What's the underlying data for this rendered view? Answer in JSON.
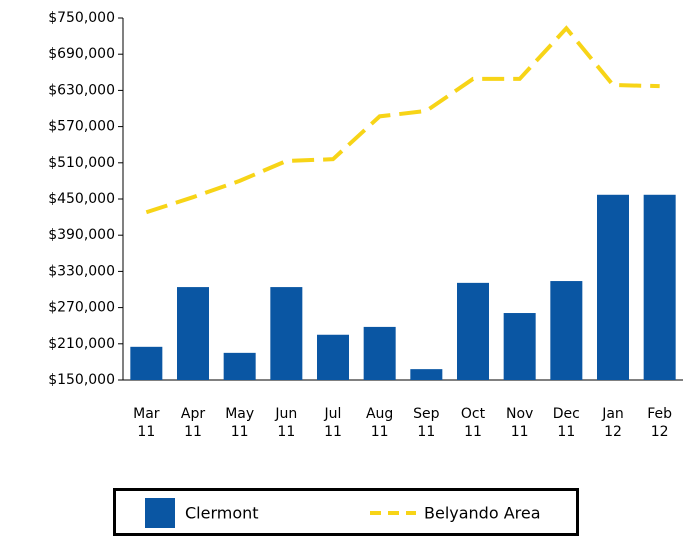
{
  "chart_data": {
    "type": "bar",
    "categories": [
      "Mar 11",
      "Apr 11",
      "May 11",
      "Jun 11",
      "Jul 11",
      "Aug 11",
      "Sep 11",
      "Oct 11",
      "Nov 11",
      "Dec 11",
      "Jan 12",
      "Feb 12"
    ],
    "series": [
      {
        "name": "Clermont",
        "type": "bar",
        "color": "#0a56a3",
        "values": [
          205000,
          304000,
          195000,
          304000,
          225000,
          238000,
          168000,
          311000,
          261000,
          314000,
          457000,
          457000
        ]
      },
      {
        "name": "Belyando Area",
        "type": "line",
        "color": "#f7d417",
        "values": [
          428000,
          453000,
          480000,
          513000,
          516000,
          587000,
          596000,
          649000,
          649000,
          733000,
          639000,
          637000
        ]
      }
    ],
    "ylim": [
      150000,
      750000
    ],
    "yticks": [
      {
        "value": 150000,
        "label": "$150,000"
      },
      {
        "value": 210000,
        "label": "$210,000"
      },
      {
        "value": 270000,
        "label": "$270,000"
      },
      {
        "value": 330000,
        "label": "$330,000"
      },
      {
        "value": 390000,
        "label": "$390,000"
      },
      {
        "value": 450000,
        "label": "$450,000"
      },
      {
        "value": 510000,
        "label": "$510,000"
      },
      {
        "value": 570000,
        "label": "$570,000"
      },
      {
        "value": 630000,
        "label": "$630,000"
      },
      {
        "value": 690000,
        "label": "$690,000"
      },
      {
        "value": 750000,
        "label": "$750,000"
      }
    ],
    "legend": "bottom"
  }
}
